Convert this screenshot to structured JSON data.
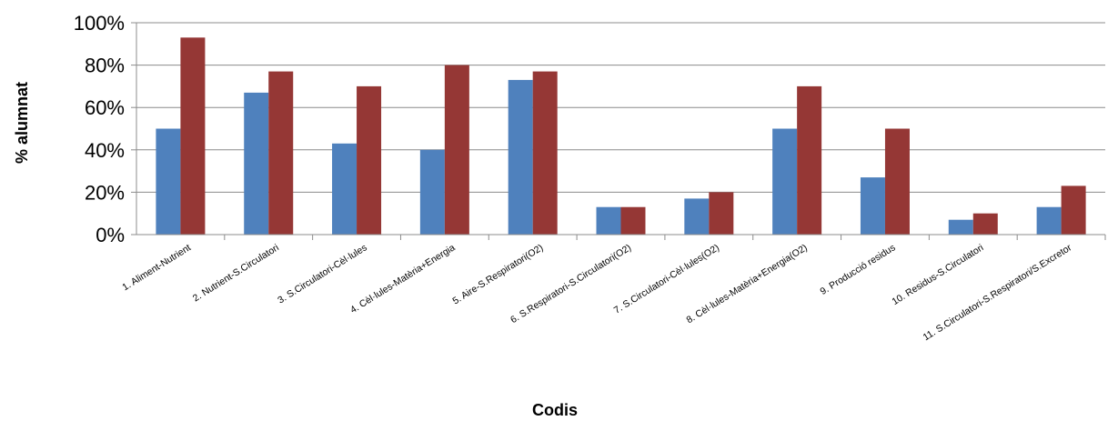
{
  "chart_data": {
    "type": "bar",
    "title": "",
    "xlabel": "Codis",
    "ylabel": "% alumnat",
    "ylim": [
      0,
      100
    ],
    "yticks": [
      "0%",
      "20%",
      "40%",
      "60%",
      "80%",
      "100%"
    ],
    "grid": true,
    "legend": "none",
    "categories": [
      "1. Aliment-Nutrient",
      "2. Nutrient-S.Circulatori",
      "3. S.Circulatori-Cèl·lules",
      "4. Cèl·lules-Matèria+Energia",
      "5. Aire-S.Respiratori(O2)",
      "6. S.Respiratori-S.Circulatori(O2)",
      "7. S.Circulatori-Cèl·lules(O2)",
      "8. Cèl·lules-Matèria+Energia(O2)",
      "9. Producció residus",
      "10. Residus-S.Circulatori",
      "11. S.Circulatori-S.Respiratori/S.Excretor"
    ],
    "series": [
      {
        "values": [
          50,
          67,
          43,
          40,
          73,
          13,
          17,
          50,
          27,
          7,
          13
        ]
      },
      {
        "values": [
          93,
          77,
          70,
          80,
          77,
          13,
          20,
          70,
          50,
          10,
          23
        ]
      }
    ],
    "colors": [
      "#4f81bd",
      "#953735"
    ]
  }
}
